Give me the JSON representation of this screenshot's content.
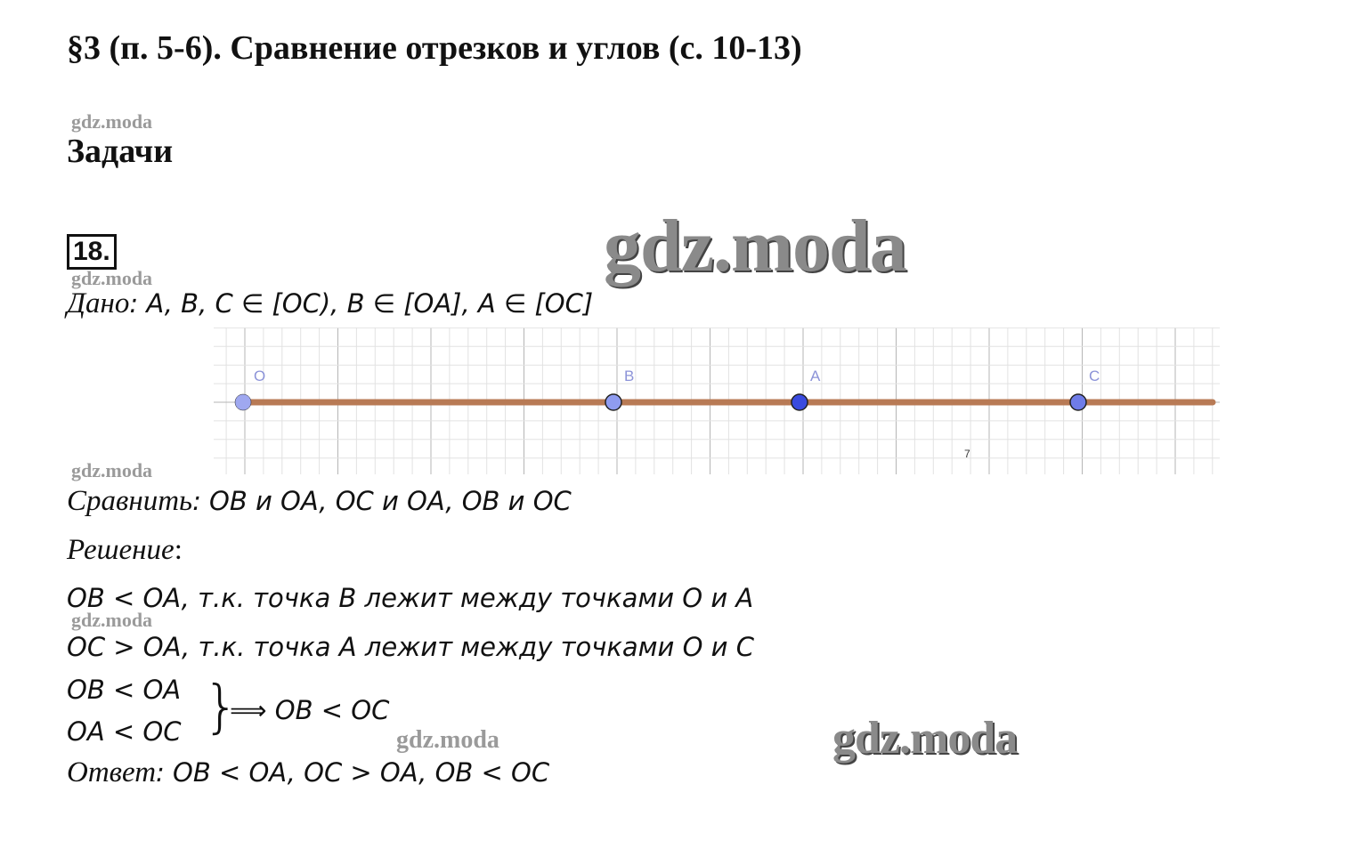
{
  "header": {
    "title": "§3 (п. 5-6). Сравнение отрезков и углов (с. 10-13)",
    "section": "Задачи"
  },
  "problem": {
    "number": "18.",
    "given_label": "Дано",
    "given": ": A, B, C ∈ [OC), B ∈ [OA], A ∈ [OC]",
    "compare_label": "Сравнить",
    "compare": ": OB и OA, OC и OA, OB и OC",
    "solution_label": "Решение",
    "solution_colon": ":",
    "line1": "OB < OA, т.к. точка B лежит между точками O и A",
    "line2": "OC > OA, т.к. точка A лежит между точками O и C",
    "system_line1": "OB < OA",
    "system_line2": "OA < OC",
    "brace": "}",
    "implies": "⟹  OB <  OC",
    "answer_label": "Ответ",
    "answer": ": OB < OA, OC >  OA, OB <  OC"
  },
  "diagram": {
    "points": [
      {
        "label": "O",
        "color": "#9fa8f0"
      },
      {
        "label": "B",
        "color": "#8f9cf0"
      },
      {
        "label": "A",
        "color": "#3a4be0"
      },
      {
        "label": "C",
        "color": "#6f7ce8"
      }
    ],
    "ray_color": "#b87a55",
    "stray_mark": "7"
  },
  "watermarks": {
    "small": "gdz.moda",
    "big": "gdz.moda"
  }
}
